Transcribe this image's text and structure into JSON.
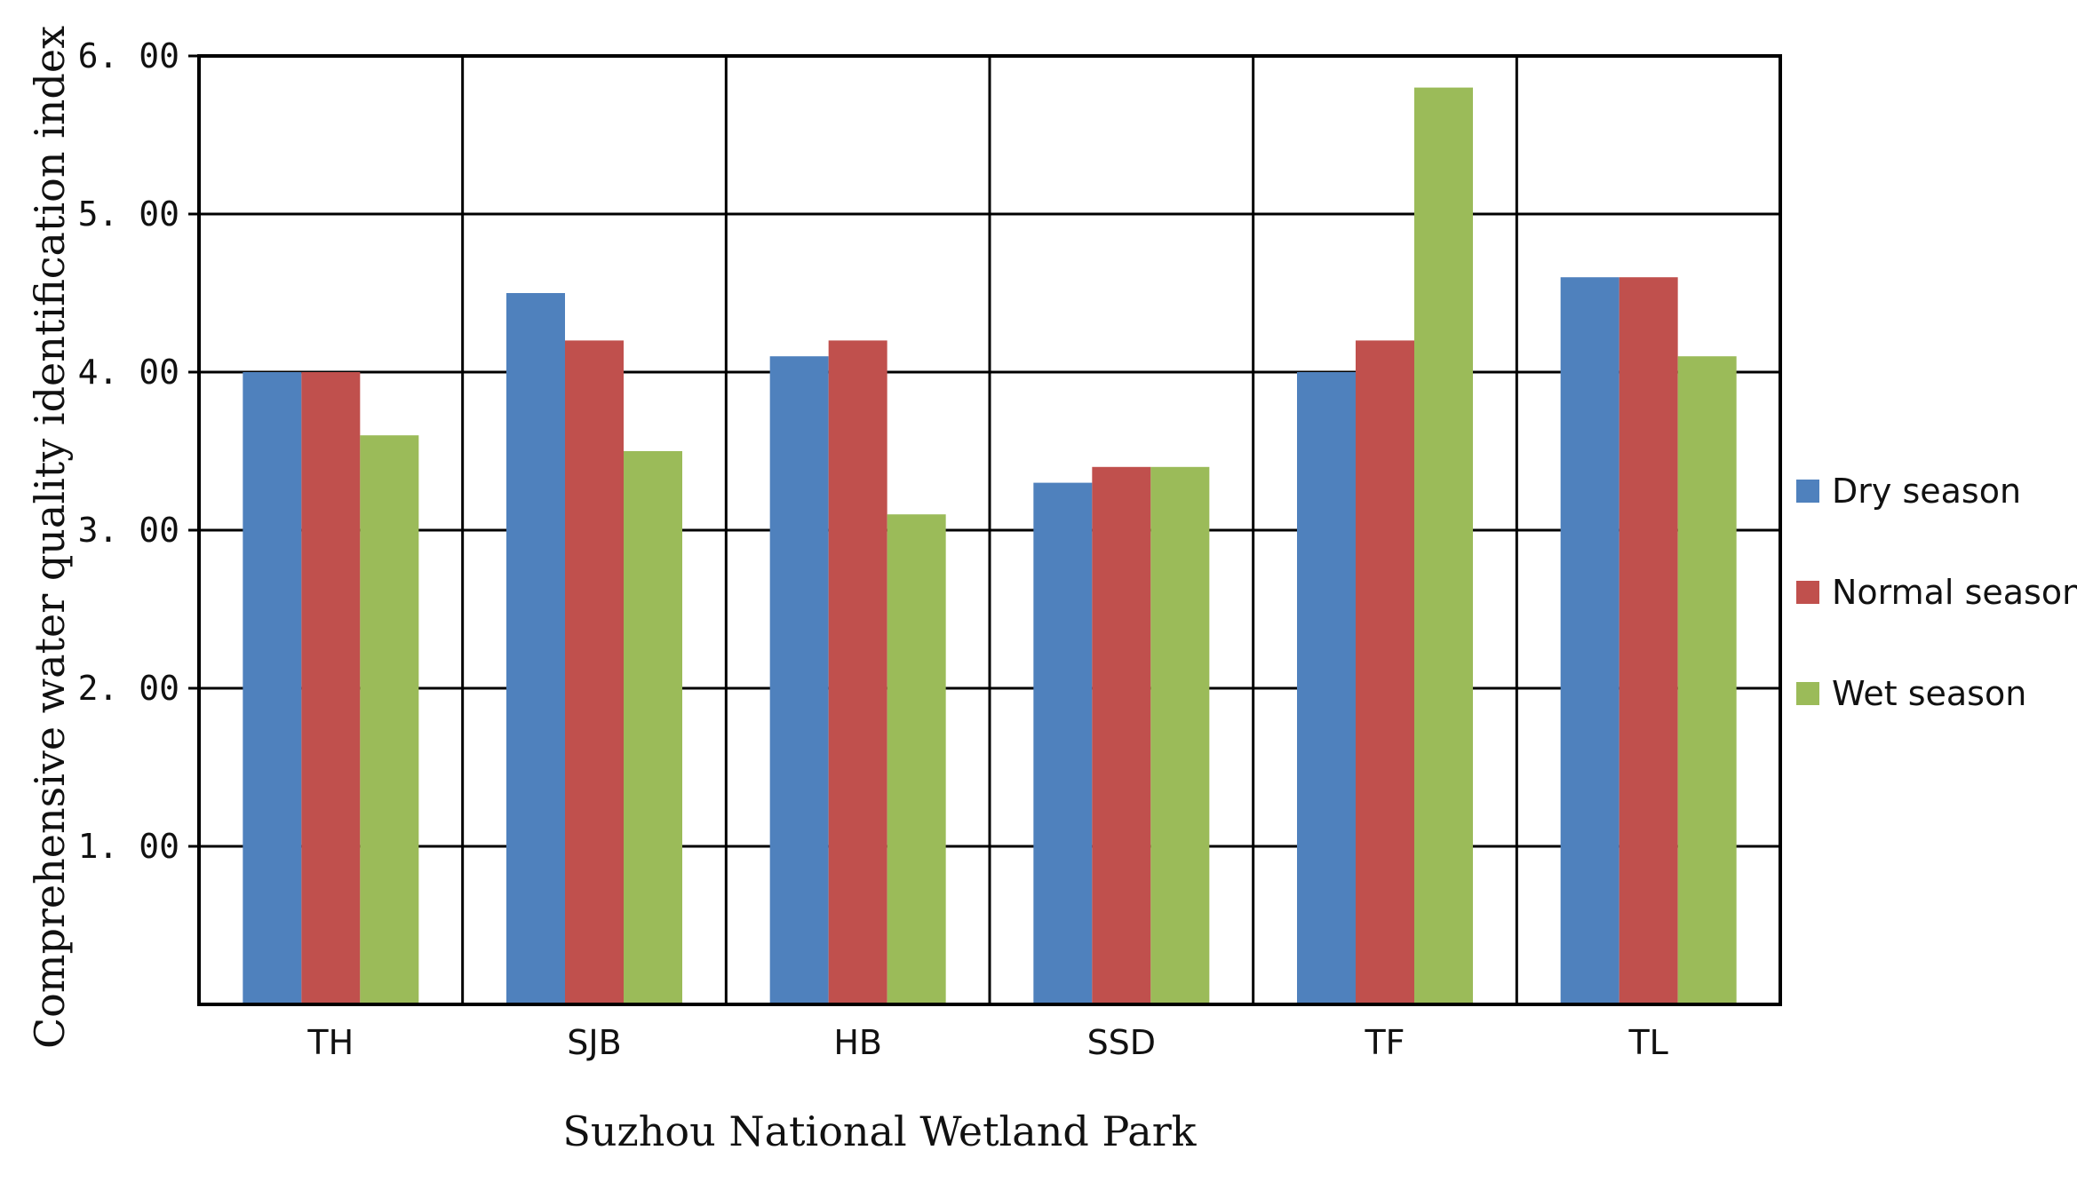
{
  "chart_data": {
    "type": "bar",
    "title": "",
    "xlabel": "Suzhou National Wetland Park",
    "ylabel": "Comprehensive water quality identification index",
    "categories": [
      "TH",
      "SJB",
      "HB",
      "SSD",
      "TF",
      "TL"
    ],
    "series": [
      {
        "name": "Dry season",
        "color": "#4f81bd",
        "values": [
          4.0,
          4.5,
          4.1,
          3.3,
          4.0,
          4.6
        ]
      },
      {
        "name": "Normal season",
        "color": "#c0504d",
        "values": [
          4.0,
          4.2,
          4.2,
          3.4,
          4.2,
          4.6
        ]
      },
      {
        "name": "Wet season",
        "color": "#9bbb59",
        "values": [
          3.6,
          3.5,
          3.1,
          3.4,
          5.8,
          4.1
        ]
      }
    ],
    "ylim": [
      0,
      6
    ],
    "yticks": [
      {
        "value": 1,
        "label": "1. 00"
      },
      {
        "value": 2,
        "label": "2. 00"
      },
      {
        "value": 3,
        "label": "3. 00"
      },
      {
        "value": 4,
        "label": "4. 00"
      },
      {
        "value": 5,
        "label": "5. 00"
      },
      {
        "value": 6,
        "label": "6. 00"
      }
    ],
    "grid": true,
    "legend_position": "right"
  }
}
